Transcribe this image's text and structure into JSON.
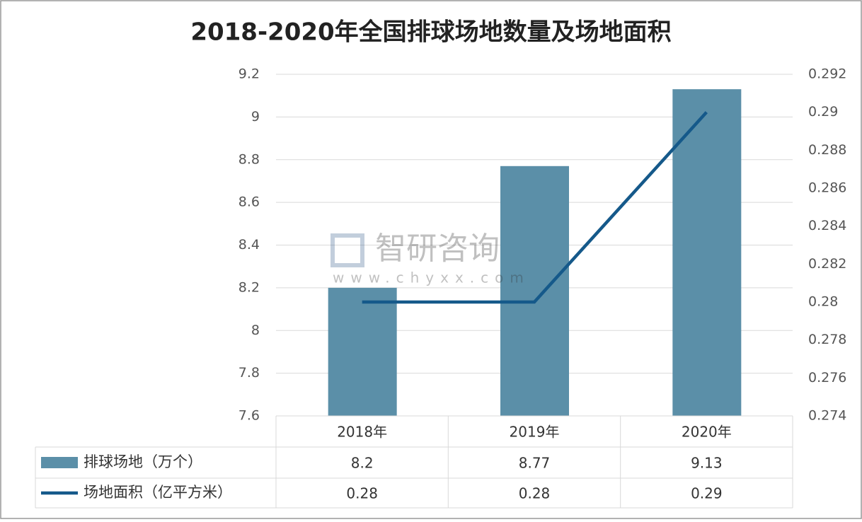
{
  "chart_data": {
    "type": "bar-line-table",
    "title": "2018-2020年全国排球场地数量及场地面积",
    "categories": [
      "2018年",
      "2019年",
      "2020年"
    ],
    "series": [
      {
        "name": "排球场地（万个）",
        "color": "#5b8fa8",
        "type": "bar",
        "values": [
          8.2,
          8.77,
          9.13
        ]
      },
      {
        "name": "场地面积（亿平方米）",
        "color": "#15598a",
        "type": "line",
        "axis": "y2",
        "values": [
          0.28,
          0.28,
          0.29
        ]
      }
    ],
    "ylim": [
      7.6,
      9.2
    ],
    "yticks": [
      7.6,
      7.8,
      8,
      8.2,
      8.4,
      8.6,
      8.8,
      9,
      9.2
    ],
    "y2lim": [
      0.274,
      0.292
    ],
    "y2ticks": [
      0.274,
      0.276,
      0.278,
      0.28,
      0.282,
      0.284,
      0.286,
      0.288,
      0.29,
      0.292
    ],
    "grid": true,
    "watermark": [
      "智研咨询",
      "www.chyxx.com"
    ]
  }
}
